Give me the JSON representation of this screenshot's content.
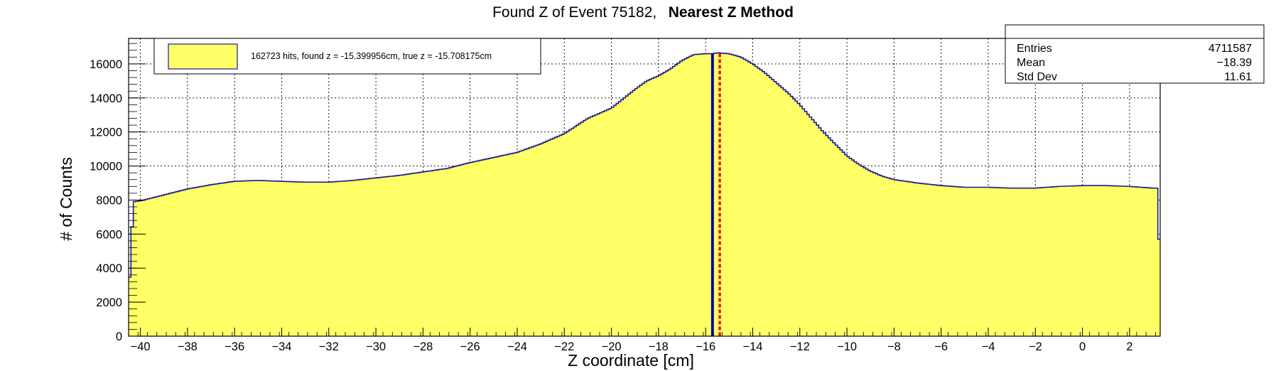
{
  "title": {
    "main": "Found Z of Event 75182,",
    "method": "Nearest Z Method"
  },
  "stats_box": {
    "rows": [
      {
        "label": "Entries",
        "value": "4711587"
      },
      {
        "label": "Mean",
        "value": "−18.39"
      },
      {
        "label": "Std Dev",
        "value": "11.61"
      }
    ]
  },
  "legend": {
    "entry": "162723 hits, found z = -15.399956cm, true z = -15.708175cm"
  },
  "colors": {
    "fill": "#ffff66",
    "outline": "#1c1c8c",
    "found_line": "#0a0a9a",
    "true_line": "#ee1111"
  },
  "chart_data": {
    "type": "histogram",
    "xlabel": "Z coordinate [cm]",
    "ylabel": "# of Counts",
    "xlim": [
      -40.5,
      3.3
    ],
    "ylim": [
      0,
      17500
    ],
    "x_ticks": [
      -40,
      -38,
      -36,
      -34,
      -32,
      -30,
      -28,
      -26,
      -24,
      -22,
      -20,
      -18,
      -16,
      -14,
      -12,
      -10,
      -8,
      -6,
      -4,
      -2,
      0,
      2
    ],
    "y_ticks": [
      0,
      2000,
      4000,
      6000,
      8000,
      10000,
      12000,
      14000,
      16000
    ],
    "grid": true,
    "found_z": -15.399956,
    "true_z": -15.708175,
    "histogram_profile": {
      "x": [
        -40.5,
        -40.3,
        -40,
        -39,
        -38,
        -37,
        -36,
        -35,
        -34,
        -33,
        -32,
        -31,
        -30,
        -29,
        -28,
        -27,
        -26,
        -25,
        -24,
        -23,
        -22,
        -21,
        -20,
        -19,
        -18.5,
        -18,
        -17.5,
        -17,
        -16.5,
        -16,
        -15.7,
        -15.5,
        -15,
        -14.5,
        -14,
        -13.5,
        -13,
        -12.5,
        -12,
        -11.5,
        -11,
        -10.5,
        -10,
        -9.5,
        -9,
        -8.5,
        -8,
        -7,
        -6,
        -5,
        -4,
        -3,
        -2,
        -1,
        0,
        1,
        2,
        3,
        3.15,
        3.3
      ],
      "y": [
        2000,
        7900,
        7950,
        8300,
        8650,
        8900,
        9100,
        9150,
        9100,
        9050,
        9050,
        9150,
        9300,
        9450,
        9650,
        9850,
        10200,
        10500,
        10800,
        11300,
        11900,
        12800,
        13400,
        14500,
        15000,
        15300,
        15700,
        16200,
        16550,
        16600,
        16600,
        16650,
        16600,
        16400,
        16000,
        15500,
        14900,
        14300,
        13600,
        12800,
        12000,
        11300,
        10600,
        10100,
        9700,
        9400,
        9200,
        9000,
        8850,
        8750,
        8750,
        8700,
        8700,
        8800,
        8850,
        8850,
        8800,
        8700,
        8700,
        4200
      ]
    }
  }
}
